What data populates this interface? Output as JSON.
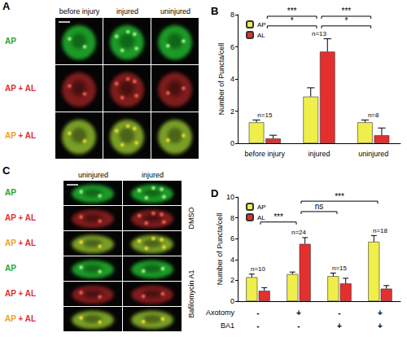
{
  "panels": [
    {
      "label": "A",
      "columns": [
        "before injury",
        "injured",
        "uninjured"
      ],
      "rows": [
        "AP",
        "AP + AL",
        "AP + AL"
      ]
    },
    {
      "label": "C",
      "columns": [
        "uninjured",
        "injured"
      ],
      "groups": [
        {
          "label": "DMSO",
          "rows": [
            "AP",
            "AP + AL",
            "AP + AL"
          ]
        },
        {
          "label": "Bafilomycin A1",
          "rows": [
            "AP",
            "AP + AL",
            "AP + AL"
          ]
        }
      ]
    }
  ],
  "chart_data": [
    {
      "type": "bar",
      "title": "B",
      "categories": [
        "before injury",
        "injured",
        "uninjured"
      ],
      "series": [
        {
          "name": "AP",
          "color": "#f0ee4a",
          "values": [
            1.3,
            2.9,
            1.3
          ],
          "errors": [
            0.15,
            0.55,
            0.15
          ]
        },
        {
          "name": "AL",
          "color": "#e3302e",
          "values": [
            0.3,
            5.7,
            0.5
          ],
          "errors": [
            0.2,
            0.8,
            0.45
          ]
        }
      ],
      "ylabel": "Number of Puncta/cell",
      "ylim": [
        0,
        8
      ],
      "yticks": [
        0,
        2,
        4,
        6,
        8
      ],
      "grid": false,
      "legend": "upper left",
      "sample_sizes": [
        "n=15",
        "n=13",
        "n=8"
      ],
      "significance": [
        {
          "text": "*",
          "from": 0,
          "to": 1,
          "y": 7.3
        },
        {
          "text": "*",
          "from": 1,
          "to": 2,
          "y": 7.3
        },
        {
          "text": "***",
          "from": 0,
          "to": 1,
          "y": 7.9
        },
        {
          "text": "***",
          "from": 1,
          "to": 2,
          "y": 7.9
        }
      ]
    },
    {
      "type": "bar",
      "title": "D",
      "categories": [
        null,
        null,
        null,
        null
      ],
      "series": [
        {
          "name": "AP",
          "color": "#f0ee4a",
          "values": [
            2.3,
            2.6,
            2.4,
            5.7
          ],
          "errors": [
            0.3,
            0.2,
            0.3,
            0.6
          ]
        },
        {
          "name": "AL",
          "color": "#e3302e",
          "values": [
            1.0,
            5.5,
            1.7,
            1.2
          ],
          "errors": [
            0.3,
            0.6,
            0.5,
            0.3
          ]
        }
      ],
      "ylabel": "Number of Puncta/cell",
      "ylim": [
        0,
        10
      ],
      "yticks": [
        0,
        2,
        4,
        6,
        8,
        10
      ],
      "grid": false,
      "legend": "upper left",
      "sample_sizes": [
        "n=10",
        "n=24",
        "n=15",
        "n=18"
      ],
      "significance": [
        {
          "text": "***",
          "from": 0,
          "to": 1,
          "y": 7.6
        },
        {
          "text": "ns",
          "from": 1,
          "to": 2,
          "y": 8.6
        },
        {
          "text": "***",
          "from": 1,
          "to": 3,
          "y": 9.6
        }
      ],
      "condition_rows": [
        {
          "label": "Axotomy",
          "marks": [
            "-",
            "+",
            "-",
            "+"
          ]
        },
        {
          "label": "BA1",
          "marks": [
            "-",
            "-",
            "+",
            "+"
          ]
        }
      ]
    }
  ]
}
